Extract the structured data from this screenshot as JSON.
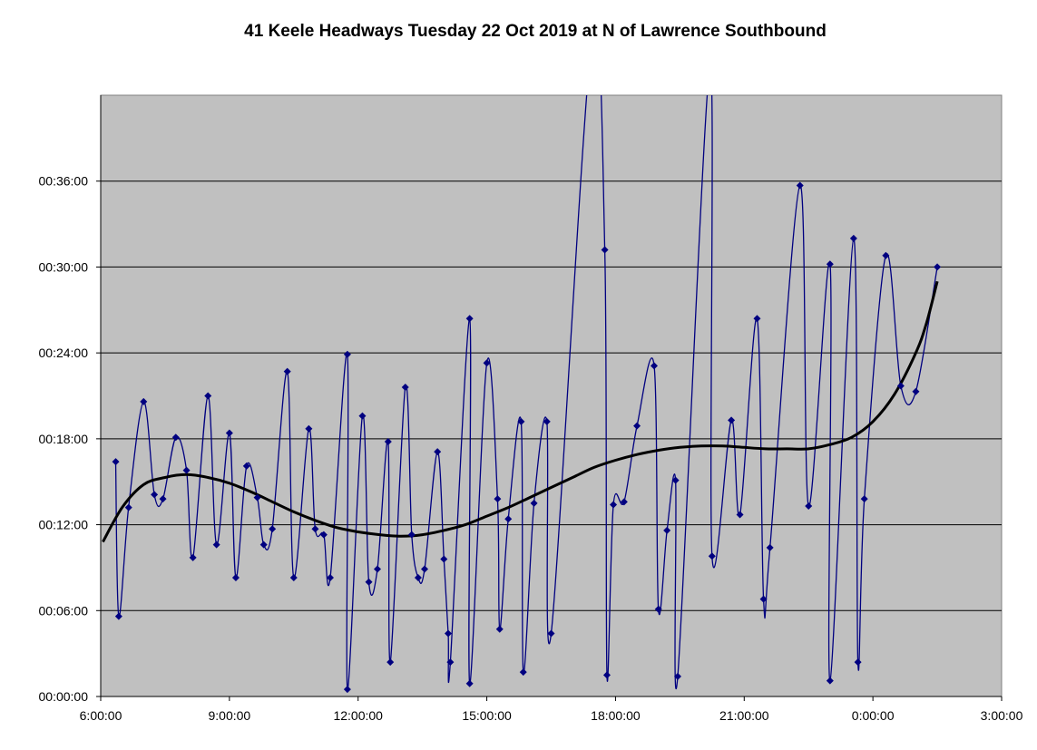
{
  "chart_data": {
    "type": "line",
    "title": "41 Keele Headways Tuesday 22 Oct 2019 at N of Lawrence Southbound",
    "xlabel": "",
    "ylabel": "",
    "x_unit": "hours since 00:00 Tuesday 22 Oct 2019",
    "y_unit": "minutes",
    "xlim": [
      6,
      27
    ],
    "ylim": [
      0,
      42
    ],
    "grid": {
      "horizontal": true,
      "vertical": false
    },
    "background": "#c0c0c0",
    "x_ticks": [
      {
        "value": 6,
        "label": "6:00:00"
      },
      {
        "value": 9,
        "label": "9:00:00"
      },
      {
        "value": 12,
        "label": "12:00:00"
      },
      {
        "value": 15,
        "label": "15:00:00"
      },
      {
        "value": 18,
        "label": "18:00:00"
      },
      {
        "value": 21,
        "label": "21:00:00"
      },
      {
        "value": 24,
        "label": "0:00:00"
      },
      {
        "value": 27,
        "label": "3:00:00"
      }
    ],
    "y_ticks": [
      {
        "value": 0,
        "label": "00:00:00"
      },
      {
        "value": 6,
        "label": "00:06:00"
      },
      {
        "value": 12,
        "label": "00:12:00"
      },
      {
        "value": 18,
        "label": "00:18:00"
      },
      {
        "value": 24,
        "label": "00:24:00"
      },
      {
        "value": 30,
        "label": "00:30:00"
      },
      {
        "value": 36,
        "label": "00:36:00"
      }
    ],
    "series": [
      {
        "kind": "headways",
        "color": "#000080",
        "marker": "diamond",
        "points": [
          [
            6.35,
            16.4
          ],
          [
            6.42,
            5.6
          ],
          [
            6.65,
            13.2
          ],
          [
            7.0,
            20.6
          ],
          [
            7.25,
            14.1
          ],
          [
            7.45,
            13.8
          ],
          [
            7.75,
            18.1
          ],
          [
            8.0,
            15.8
          ],
          [
            8.15,
            9.7
          ],
          [
            8.5,
            21.0
          ],
          [
            8.7,
            10.6
          ],
          [
            9.0,
            18.4
          ],
          [
            9.15,
            8.3
          ],
          [
            9.4,
            16.1
          ],
          [
            9.65,
            13.9
          ],
          [
            9.8,
            10.6
          ],
          [
            10.0,
            11.7
          ],
          [
            10.35,
            22.7
          ],
          [
            10.5,
            8.3
          ],
          [
            10.85,
            18.7
          ],
          [
            11.0,
            11.7
          ],
          [
            11.2,
            11.3
          ],
          [
            11.35,
            8.3
          ],
          [
            11.75,
            23.9
          ],
          [
            11.75,
            0.5
          ],
          [
            12.1,
            19.6
          ],
          [
            12.25,
            8.0
          ],
          [
            12.45,
            8.9
          ],
          [
            12.7,
            17.8
          ],
          [
            12.75,
            2.4
          ],
          [
            13.1,
            21.6
          ],
          [
            13.25,
            11.3
          ],
          [
            13.4,
            8.3
          ],
          [
            13.55,
            8.9
          ],
          [
            13.85,
            17.1
          ],
          [
            14.0,
            9.6
          ],
          [
            14.1,
            4.4
          ],
          [
            14.15,
            2.4
          ],
          [
            14.6,
            26.4
          ],
          [
            14.6,
            0.9
          ],
          [
            15.0,
            23.3
          ],
          [
            15.25,
            13.8
          ],
          [
            15.3,
            4.7
          ],
          [
            15.5,
            12.4
          ],
          [
            15.8,
            19.2
          ],
          [
            15.85,
            1.7
          ],
          [
            16.1,
            13.5
          ],
          [
            16.4,
            19.2
          ],
          [
            16.5,
            4.4
          ],
          [
            17.45,
            46.0
          ],
          [
            17.75,
            31.2
          ],
          [
            17.8,
            1.5
          ],
          [
            17.95,
            13.4
          ],
          [
            18.2,
            13.6
          ],
          [
            18.5,
            18.9
          ],
          [
            18.9,
            23.1
          ],
          [
            19.0,
            6.1
          ],
          [
            19.2,
            11.6
          ],
          [
            19.4,
            15.1
          ],
          [
            19.45,
            1.4
          ],
          [
            20.2,
            44.0
          ],
          [
            20.25,
            9.8
          ],
          [
            20.7,
            19.3
          ],
          [
            20.9,
            12.7
          ],
          [
            21.3,
            26.4
          ],
          [
            21.45,
            6.8
          ],
          [
            21.6,
            10.4
          ],
          [
            22.3,
            35.7
          ],
          [
            22.5,
            13.3
          ],
          [
            23.0,
            30.2
          ],
          [
            23.0,
            1.1
          ],
          [
            23.55,
            32.0
          ],
          [
            23.65,
            2.4
          ],
          [
            23.8,
            13.8
          ],
          [
            24.3,
            30.8
          ],
          [
            24.65,
            21.7
          ],
          [
            25.0,
            21.3
          ],
          [
            25.5,
            30.0
          ]
        ]
      },
      {
        "kind": "trend",
        "color": "#000000",
        "points": [
          [
            6.05,
            10.8
          ],
          [
            6.5,
            13.2
          ],
          [
            7.0,
            14.8
          ],
          [
            7.5,
            15.3
          ],
          [
            8.0,
            15.5
          ],
          [
            8.5,
            15.3
          ],
          [
            9.0,
            14.9
          ],
          [
            9.5,
            14.3
          ],
          [
            10.0,
            13.6
          ],
          [
            10.5,
            12.9
          ],
          [
            11.0,
            12.3
          ],
          [
            11.5,
            11.8
          ],
          [
            12.0,
            11.5
          ],
          [
            12.5,
            11.3
          ],
          [
            13.0,
            11.2
          ],
          [
            13.5,
            11.3
          ],
          [
            14.0,
            11.6
          ],
          [
            14.5,
            12.0
          ],
          [
            15.0,
            12.6
          ],
          [
            15.5,
            13.2
          ],
          [
            16.0,
            13.9
          ],
          [
            16.5,
            14.6
          ],
          [
            17.0,
            15.3
          ],
          [
            17.5,
            16.0
          ],
          [
            18.0,
            16.5
          ],
          [
            18.5,
            16.9
          ],
          [
            19.0,
            17.2
          ],
          [
            19.5,
            17.4
          ],
          [
            20.0,
            17.5
          ],
          [
            20.5,
            17.5
          ],
          [
            21.0,
            17.4
          ],
          [
            21.5,
            17.3
          ],
          [
            22.0,
            17.3
          ],
          [
            22.5,
            17.3
          ],
          [
            23.0,
            17.6
          ],
          [
            23.5,
            18.1
          ],
          [
            24.0,
            19.2
          ],
          [
            24.5,
            21.1
          ],
          [
            25.0,
            24.0
          ],
          [
            25.25,
            26.1
          ],
          [
            25.5,
            29.0
          ]
        ]
      }
    ]
  }
}
